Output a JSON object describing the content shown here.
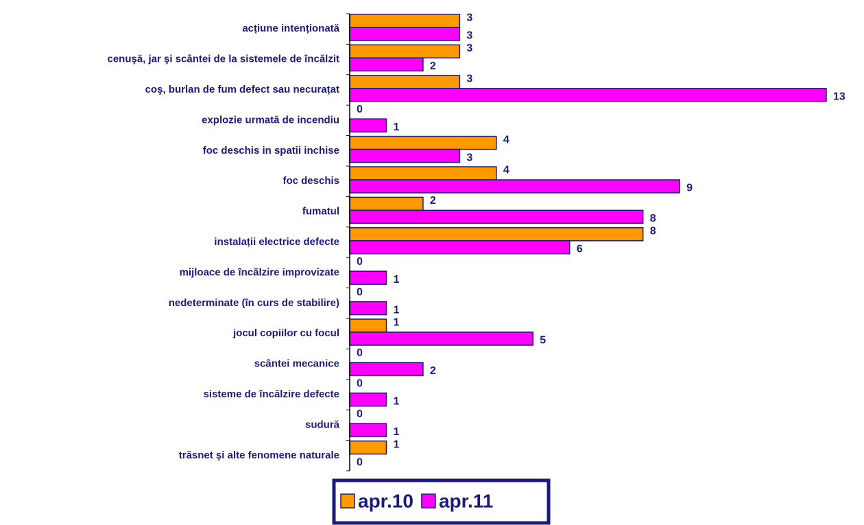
{
  "chart_data": {
    "type": "bar",
    "orientation": "horizontal",
    "categories": [
      "acțiune intenționată",
      "cenuşă, jar şi scântei de la sistemele de încălzit",
      "coş, burlan  de fum defect sau necurațat",
      "explozie urmată de incendiu",
      "foc deschis in spatii inchise",
      "foc deschis",
      "fumatul",
      "instalații electrice defecte",
      "mijloace de încălzire improvizate",
      "nedeterminate (în curs de stabilire)",
      "jocul copiilor cu focul",
      "scântei mecanice",
      "sisteme de încălzire defecte",
      "sudură",
      "trăsnet şi alte fenomene naturale"
    ],
    "series": [
      {
        "name": "apr.10",
        "color": "#ff9900",
        "values": [
          3,
          3,
          3,
          0,
          4,
          4,
          2,
          8,
          0,
          0,
          1,
          0,
          0,
          0,
          1
        ]
      },
      {
        "name": "apr.11",
        "color": "#ff00ff",
        "values": [
          3,
          2,
          13,
          1,
          3,
          9,
          8,
          6,
          1,
          1,
          5,
          2,
          1,
          1,
          0
        ]
      }
    ],
    "xlim": [
      0,
      13
    ],
    "legend": "bottom"
  }
}
